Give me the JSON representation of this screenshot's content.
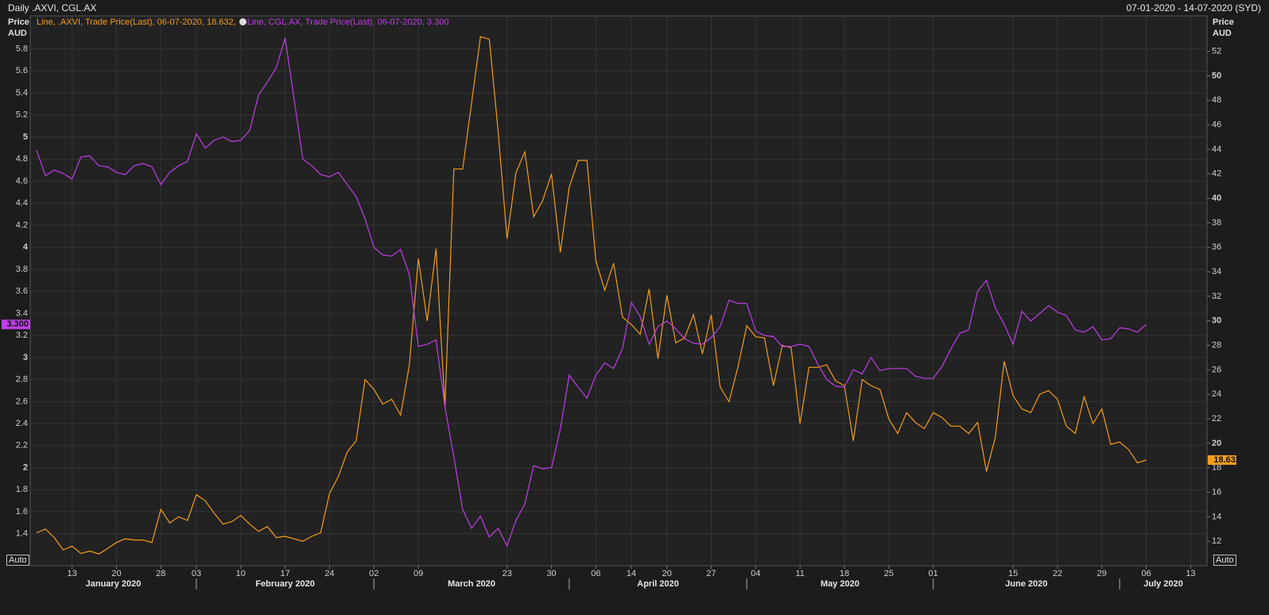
{
  "chart_data": {
    "type": "line",
    "title": "Daily .AXVI, CGL.AX",
    "date_range": "07-01-2020 - 14-07-2020 (SYD)",
    "ylabel": "Price AUD",
    "y2label": "Price AUD",
    "auto_label": "Auto",
    "grid": true,
    "x": [
      "2020-01-07",
      "2020-01-08",
      "2020-01-09",
      "2020-01-10",
      "2020-01-13",
      "2020-01-14",
      "2020-01-15",
      "2020-01-16",
      "2020-01-17",
      "2020-01-20",
      "2020-01-21",
      "2020-01-22",
      "2020-01-23",
      "2020-01-24",
      "2020-01-28",
      "2020-01-29",
      "2020-01-30",
      "2020-01-31",
      "2020-02-03",
      "2020-02-04",
      "2020-02-05",
      "2020-02-06",
      "2020-02-07",
      "2020-02-10",
      "2020-02-11",
      "2020-02-12",
      "2020-02-13",
      "2020-02-14",
      "2020-02-17",
      "2020-02-18",
      "2020-02-19",
      "2020-02-20",
      "2020-02-21",
      "2020-02-24",
      "2020-02-25",
      "2020-02-26",
      "2020-02-27",
      "2020-02-28",
      "2020-03-02",
      "2020-03-03",
      "2020-03-04",
      "2020-03-05",
      "2020-03-06",
      "2020-03-09",
      "2020-03-10",
      "2020-03-11",
      "2020-03-12",
      "2020-03-13",
      "2020-03-16",
      "2020-03-17",
      "2020-03-18",
      "2020-03-19",
      "2020-03-20",
      "2020-03-23",
      "2020-03-24",
      "2020-03-25",
      "2020-03-26",
      "2020-03-27",
      "2020-03-30",
      "2020-03-31",
      "2020-04-01",
      "2020-04-02",
      "2020-04-03",
      "2020-04-06",
      "2020-04-07",
      "2020-04-08",
      "2020-04-09",
      "2020-04-14",
      "2020-04-15",
      "2020-04-16",
      "2020-04-17",
      "2020-04-20",
      "2020-04-21",
      "2020-04-22",
      "2020-04-23",
      "2020-04-24",
      "2020-04-27",
      "2020-04-28",
      "2020-04-29",
      "2020-04-30",
      "2020-05-01",
      "2020-05-04",
      "2020-05-05",
      "2020-05-06",
      "2020-05-07",
      "2020-05-08",
      "2020-05-11",
      "2020-05-12",
      "2020-05-13",
      "2020-05-14",
      "2020-05-15",
      "2020-05-18",
      "2020-05-19",
      "2020-05-20",
      "2020-05-21",
      "2020-05-22",
      "2020-05-25",
      "2020-05-26",
      "2020-05-27",
      "2020-05-28",
      "2020-05-29",
      "2020-06-01",
      "2020-06-02",
      "2020-06-03",
      "2020-06-04",
      "2020-06-05",
      "2020-06-09",
      "2020-06-10",
      "2020-06-11",
      "2020-06-12",
      "2020-06-15",
      "2020-06-16",
      "2020-06-17",
      "2020-06-18",
      "2020-06-19",
      "2020-06-22",
      "2020-06-23",
      "2020-06-24",
      "2020-06-25",
      "2020-06-26",
      "2020-06-29",
      "2020-06-30",
      "2020-07-01",
      "2020-07-02",
      "2020-07-03",
      "2020-07-06"
    ],
    "xticks": [
      {
        "value": "2020-01-13",
        "label": "13"
      },
      {
        "value": "2020-01-20",
        "label": "20"
      },
      {
        "value": "2020-01-28",
        "label": "28"
      },
      {
        "value": "2020-02-03",
        "label": "03"
      },
      {
        "value": "2020-02-10",
        "label": "10"
      },
      {
        "value": "2020-02-17",
        "label": "17"
      },
      {
        "value": "2020-02-24",
        "label": "24"
      },
      {
        "value": "2020-03-02",
        "label": "02"
      },
      {
        "value": "2020-03-09",
        "label": "09"
      },
      {
        "value": "2020-03-23",
        "label": "23"
      },
      {
        "value": "2020-03-30",
        "label": "30"
      },
      {
        "value": "2020-04-06",
        "label": "06"
      },
      {
        "value": "2020-04-14",
        "label": "14"
      },
      {
        "value": "2020-04-20",
        "label": "20"
      },
      {
        "value": "2020-04-27",
        "label": "27"
      },
      {
        "value": "2020-05-04",
        "label": "04"
      },
      {
        "value": "2020-05-11",
        "label": "11"
      },
      {
        "value": "2020-05-18",
        "label": "18"
      },
      {
        "value": "2020-05-25",
        "label": "25"
      },
      {
        "value": "2020-06-01",
        "label": "01"
      },
      {
        "value": "2020-06-15",
        "label": "15"
      },
      {
        "value": "2020-06-22",
        "label": "22"
      },
      {
        "value": "2020-06-29",
        "label": "29"
      },
      {
        "value": "2020-07-06",
        "label": "06"
      },
      {
        "value": "2020-07-13",
        "label": "13"
      }
    ],
    "months": [
      {
        "value": "2020-01",
        "label": "January 2020"
      },
      {
        "value": "2020-02",
        "label": "February 2020"
      },
      {
        "value": "2020-03",
        "label": "March 2020"
      },
      {
        "value": "2020-04",
        "label": "April 2020"
      },
      {
        "value": "2020-05",
        "label": "May 2020"
      },
      {
        "value": "2020-06",
        "label": "June 2020"
      },
      {
        "value": "2020-07",
        "label": "July 2020"
      }
    ],
    "ylim": [
      1.11,
      6.1
    ],
    "yticks": [
      1.4,
      1.6,
      1.8,
      2,
      2.2,
      2.4,
      2.6,
      2.8,
      3,
      3.2,
      3.4,
      3.6,
      3.8,
      4,
      4.2,
      4.4,
      4.6,
      4.8,
      5,
      5.2,
      5.4,
      5.6,
      5.8
    ],
    "y2lim": [
      10,
      54.9
    ],
    "y2ticks": [
      12,
      14,
      16,
      18,
      20,
      22,
      24,
      26,
      28,
      30,
      32,
      34,
      36,
      38,
      40,
      42,
      44,
      46,
      48,
      50,
      52
    ],
    "series": [
      {
        "legend": "Line, .AXVI, Trade Price(Last), 06-07-2020, 18.632,",
        "color": "#f39c1b",
        "axis": "y2",
        "last_label": "18.632",
        "values": [
          12.7,
          13.0,
          12.3,
          11.3,
          11.6,
          11.0,
          11.2,
          10.96,
          11.4,
          11.9,
          12.2,
          12.1,
          12.1,
          11.9,
          14.6,
          13.5,
          14.0,
          13.7,
          15.8,
          15.3,
          14.3,
          13.4,
          13.6,
          14.1,
          13.4,
          12.8,
          13.2,
          12.3,
          12.4,
          12.2,
          12.0,
          12.4,
          12.7,
          15.9,
          17.3,
          19.3,
          20.2,
          25.2,
          24.4,
          23.2,
          23.6,
          22.3,
          26.4,
          35.1,
          30.0,
          35.9,
          23.0,
          42.4,
          42.4,
          47.8,
          53.2,
          53.0,
          45.4,
          36.7,
          42.1,
          43.8,
          38.5,
          39.8,
          42.0,
          35.6,
          40.9,
          43.1,
          43.1,
          34.9,
          32.5,
          34.7,
          30.3,
          29.7,
          28.9,
          32.6,
          26.9,
          32.1,
          28.2,
          28.6,
          30.5,
          27.3,
          30.5,
          24.6,
          23.4,
          26.2,
          29.6,
          28.7,
          28.6,
          24.7,
          28.0,
          27.8,
          21.6,
          26.2,
          26.2,
          26.4,
          25.1,
          24.7,
          20.2,
          25.2,
          24.7,
          24.4,
          22.0,
          20.8,
          22.5,
          21.7,
          21.2,
          22.5,
          22.1,
          21.4,
          21.4,
          20.8,
          21.7,
          17.7,
          20.5,
          26.7,
          23.9,
          22.8,
          22.5,
          24.0,
          24.3,
          23.6,
          21.4,
          20.8,
          23.8,
          21.6,
          22.8,
          19.9,
          20.1,
          19.5,
          18.4,
          18.632
        ]
      },
      {
        "legend": "Line, CGL.AX, Trade Price(Last), 06-07-2020, 3.300",
        "color": "#c03ee8",
        "axis": "y",
        "last_label": "3.300",
        "values": [
          4.88,
          4.65,
          4.7,
          4.67,
          4.62,
          4.82,
          4.83,
          4.74,
          4.73,
          4.68,
          4.66,
          4.74,
          4.76,
          4.73,
          4.57,
          4.68,
          4.74,
          4.78,
          5.03,
          4.9,
          4.97,
          5.0,
          4.96,
          4.97,
          5.06,
          5.38,
          5.5,
          5.63,
          5.9,
          5.35,
          4.8,
          4.74,
          4.66,
          4.64,
          4.68,
          4.57,
          4.46,
          4.26,
          4.0,
          3.93,
          3.92,
          3.98,
          3.75,
          3.1,
          3.12,
          3.16,
          2.55,
          2.1,
          1.62,
          1.45,
          1.56,
          1.37,
          1.45,
          1.29,
          1.52,
          1.67,
          2.02,
          1.99,
          2.0,
          2.35,
          2.84,
          2.73,
          2.63,
          2.84,
          2.95,
          2.9,
          3.08,
          3.5,
          3.37,
          3.12,
          3.28,
          3.33,
          3.26,
          3.17,
          3.13,
          3.12,
          3.18,
          3.28,
          3.52,
          3.49,
          3.49,
          3.24,
          3.2,
          3.19,
          3.1,
          3.1,
          3.12,
          3.1,
          2.94,
          2.8,
          2.74,
          2.73,
          2.89,
          2.85,
          3.0,
          2.88,
          2.9,
          2.9,
          2.9,
          2.83,
          2.81,
          2.81,
          2.92,
          3.08,
          3.22,
          3.25,
          3.6,
          3.7,
          3.45,
          3.3,
          3.12,
          3.42,
          3.33,
          3.4,
          3.47,
          3.41,
          3.38,
          3.25,
          3.23,
          3.28,
          3.16,
          3.17,
          3.27,
          3.26,
          3.23,
          3.3
        ]
      }
    ]
  }
}
